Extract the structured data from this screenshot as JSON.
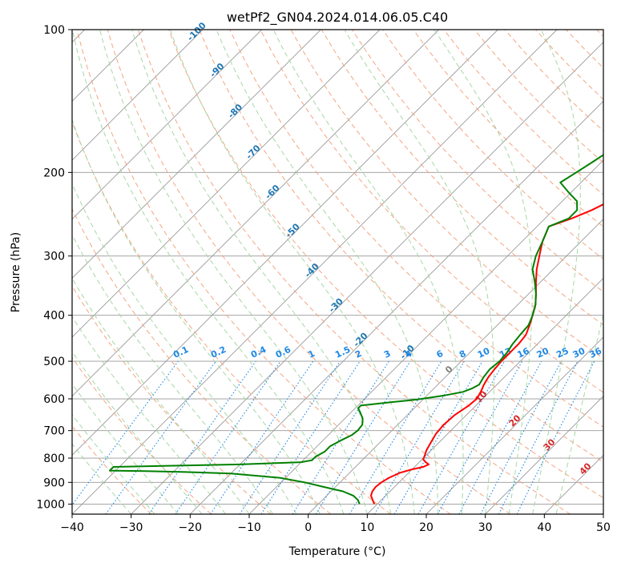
{
  "chart_data": {
    "type": "line",
    "title": "wetPf2_GN04.2024.014.06.05.C40",
    "xlabel": "Temperature (°C)",
    "ylabel": "Pressure (hPa)",
    "xlim": [
      -40,
      50
    ],
    "ylim": [
      1050,
      100
    ],
    "y_scale": "log",
    "x_ticks": [
      -40,
      -30,
      -20,
      -10,
      0,
      10,
      20,
      30,
      40,
      50
    ],
    "y_ticks": [
      100,
      200,
      300,
      400,
      500,
      600,
      700,
      800,
      900,
      1000
    ],
    "grid": true,
    "colors": {
      "temperature": "#ff0000",
      "dewpoint": "#008000",
      "isotherm": "#999999",
      "dry_adiabat": "#f4a582",
      "moist_adiabat": "#a6d7a6",
      "mixing_ratio": "#1e88e5",
      "isotherm_label": "#1f77b4",
      "moist_label": "#d62728"
    },
    "series": [
      {
        "key": "temperature",
        "points": [
          [
            1000,
            9.5
          ],
          [
            980,
            8.5
          ],
          [
            960,
            7.5
          ],
          [
            940,
            7.0
          ],
          [
            920,
            6.8
          ],
          [
            900,
            7.0
          ],
          [
            880,
            7.5
          ],
          [
            860,
            8.5
          ],
          [
            845,
            10.0
          ],
          [
            835,
            11.5
          ],
          [
            825,
            12.0
          ],
          [
            815,
            11.0
          ],
          [
            805,
            10.2
          ],
          [
            790,
            9.8
          ],
          [
            770,
            9.2
          ],
          [
            740,
            8.6
          ],
          [
            710,
            8.0
          ],
          [
            680,
            7.8
          ],
          [
            650,
            8.0
          ],
          [
            620,
            8.8
          ],
          [
            600,
            9.0
          ],
          [
            580,
            8.5
          ],
          [
            560,
            7.8
          ],
          [
            540,
            7.3
          ],
          [
            520,
            7.0
          ],
          [
            500,
            6.8
          ],
          [
            480,
            6.8
          ],
          [
            460,
            6.8
          ],
          [
            440,
            6.5
          ],
          [
            420,
            5.5
          ],
          [
            400,
            4.3
          ],
          [
            380,
            3.0
          ],
          [
            360,
            1.2
          ],
          [
            340,
            -0.8
          ],
          [
            320,
            -2.8
          ],
          [
            300,
            -4.6
          ],
          [
            280,
            -6.5
          ],
          [
            260,
            -8.0
          ],
          [
            250,
            -5.5
          ],
          [
            240,
            -3.5
          ],
          [
            230,
            -2.0
          ],
          [
            220,
            0.0
          ],
          [
            210,
            2.0
          ],
          [
            200,
            4.0
          ],
          [
            190,
            6.5
          ],
          [
            180,
            10.0
          ],
          [
            170,
            14.0
          ],
          [
            160,
            16.5
          ],
          [
            150,
            18.5
          ],
          [
            140,
            19.8
          ],
          [
            130,
            20.8
          ],
          [
            120,
            21.6
          ],
          [
            110,
            22.0
          ],
          [
            105,
            23.5
          ],
          [
            100,
            25.0
          ]
        ]
      },
      {
        "key": "dewpoint",
        "points": [
          [
            1000,
            7.0
          ],
          [
            980,
            6.0
          ],
          [
            960,
            4.5
          ],
          [
            940,
            2.0
          ],
          [
            920,
            -2.0
          ],
          [
            900,
            -6.0
          ],
          [
            880,
            -11.0
          ],
          [
            862,
            -20.0
          ],
          [
            856,
            -28.0
          ],
          [
            852,
            -35.0
          ],
          [
            850,
            -41.0
          ],
          [
            835,
            -41.0
          ],
          [
            825,
            -20.0
          ],
          [
            816,
            -10.0
          ],
          [
            808,
            -8.5
          ],
          [
            795,
            -8.5
          ],
          [
            775,
            -7.8
          ],
          [
            755,
            -7.8
          ],
          [
            735,
            -7.0
          ],
          [
            715,
            -6.0
          ],
          [
            700,
            -5.8
          ],
          [
            680,
            -6.0
          ],
          [
            660,
            -7.0
          ],
          [
            640,
            -8.5
          ],
          [
            628,
            -9.5
          ],
          [
            620,
            -9.5
          ],
          [
            610,
            -5.0
          ],
          [
            602,
            -1.0
          ],
          [
            590,
            3.0
          ],
          [
            580,
            5.5
          ],
          [
            570,
            6.5
          ],
          [
            560,
            7.0
          ],
          [
            540,
            6.5
          ],
          [
            520,
            6.2
          ],
          [
            500,
            6.5
          ],
          [
            480,
            6.3
          ],
          [
            460,
            5.8
          ],
          [
            440,
            5.5
          ],
          [
            420,
            5.3
          ],
          [
            400,
            4.3
          ],
          [
            380,
            3.0
          ],
          [
            360,
            1.2
          ],
          [
            340,
            -1.0
          ],
          [
            320,
            -3.5
          ],
          [
            300,
            -5.2
          ],
          [
            280,
            -6.5
          ],
          [
            260,
            -8.0
          ],
          [
            250,
            -6.0
          ],
          [
            240,
            -6.0
          ],
          [
            230,
            -7.5
          ],
          [
            220,
            -10.5
          ],
          [
            210,
            -13.5
          ],
          [
            200,
            -12.5
          ],
          [
            190,
            -11.5
          ],
          [
            180,
            -10.5
          ],
          [
            170,
            -12.0
          ],
          [
            160,
            -13.0
          ],
          [
            150,
            -12.0
          ],
          [
            140,
            -11.5
          ],
          [
            130,
            -9.5
          ],
          [
            120,
            -7.5
          ],
          [
            110,
            -5.5
          ],
          [
            100,
            -4.0
          ]
        ]
      }
    ],
    "isotherm_labels": [
      -100,
      -90,
      -80,
      -70,
      -60,
      -50,
      -40,
      -30,
      -20,
      -10
    ],
    "mixing_ratio_labels": [
      "0.1",
      "0.2",
      "0.4",
      "0.6",
      "1",
      "1.5",
      "2",
      "3",
      "4",
      "6",
      "8",
      "10",
      "13",
      "16",
      "20",
      "25",
      "30",
      "36"
    ],
    "moist_adiabat_labels": [
      "0",
      "10",
      "20",
      "30",
      "40"
    ]
  }
}
